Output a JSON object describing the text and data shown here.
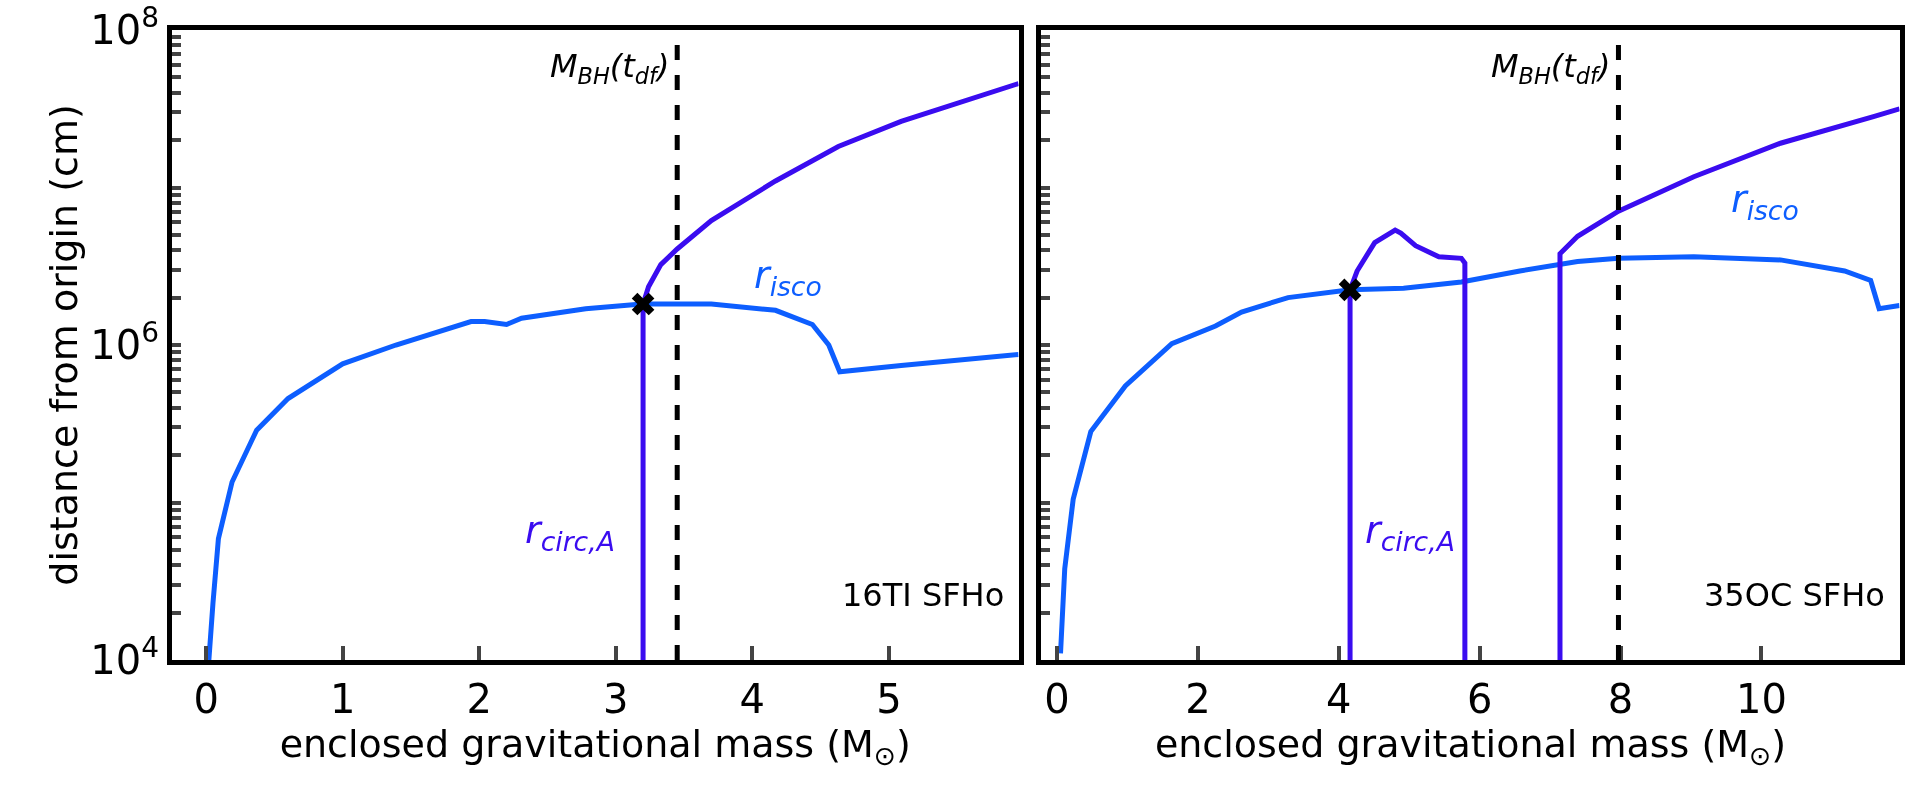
{
  "chart_data": [
    {
      "type": "line",
      "xlabel": "enclosed gravitational mass (M$_{⊙}$)",
      "ylabel": "distance from origin (cm)",
      "log": "y",
      "legend": false,
      "line_style": "solid",
      "xlim": [
        -0.25,
        5.95
      ],
      "xticks": [
        0,
        1,
        2,
        3,
        4,
        5
      ],
      "ylim": [
        10000,
        100000000
      ],
      "yticks": [
        {
          "value": 10000,
          "label": "10$^{4}$"
        },
        {
          "value": 20000,
          "label": null
        },
        {
          "value": 30000,
          "label": null
        },
        {
          "value": 40000,
          "label": null
        },
        {
          "value": 50000,
          "label": null
        },
        {
          "value": 60000,
          "label": null
        },
        {
          "value": 70000,
          "label": null
        },
        {
          "value": 80000,
          "label": null
        },
        {
          "value": 90000,
          "label": null
        },
        {
          "value": 100000,
          "label": null
        },
        {
          "value": 200000,
          "label": null
        },
        {
          "value": 300000,
          "label": null
        },
        {
          "value": 400000,
          "label": null
        },
        {
          "value": 500000,
          "label": null
        },
        {
          "value": 600000,
          "label": null
        },
        {
          "value": 700000,
          "label": null
        },
        {
          "value": 800000,
          "label": null
        },
        {
          "value": 900000,
          "label": null
        },
        {
          "value": 1000000,
          "label": "10$^{6}$"
        },
        {
          "value": 2000000,
          "label": null
        },
        {
          "value": 3000000,
          "label": null
        },
        {
          "value": 4000000,
          "label": null
        },
        {
          "value": 5000000,
          "label": null
        },
        {
          "value": 6000000,
          "label": null
        },
        {
          "value": 7000000,
          "label": null
        },
        {
          "value": 8000000,
          "label": null
        },
        {
          "value": 9000000,
          "label": null
        },
        {
          "value": 10000000,
          "label": null
        },
        {
          "value": 20000000,
          "label": null
        },
        {
          "value": 30000000,
          "label": null
        },
        {
          "value": 40000000,
          "label": null
        },
        {
          "value": 50000000,
          "label": null
        },
        {
          "value": 60000000,
          "label": null
        },
        {
          "value": 70000000,
          "label": null
        },
        {
          "value": 80000000,
          "label": null
        },
        {
          "value": 90000000,
          "label": null
        },
        {
          "value": 100000000,
          "label": "10$^{8}$"
        }
      ],
      "series": [
        {
          "name": "r$_{isco}$",
          "color": "#0d5eff",
          "x": [
            0.02,
            0.05,
            0.09,
            0.19,
            0.37,
            0.6,
            1.0,
            1.39,
            1.94,
            2.04,
            2.2,
            2.31,
            2.78,
            3.19,
            3.7,
            4.17,
            4.44,
            4.56,
            4.64,
            5.09,
            5.95
          ],
          "values": [
            10000,
            22900,
            58900,
            135000,
            288000,
            457000,
            759000,
            1000000,
            1410000,
            1410000,
            1350000,
            1480000,
            1700000,
            1820000,
            1820000,
            1660000,
            1350000,
            1000000,
            676000,
            741000,
            871000
          ]
        },
        {
          "name": "r$_{circ,A}$",
          "color": "#3a0cf0",
          "x": [
            3.2,
            3.2,
            3.24,
            3.33,
            3.45,
            3.7,
            4.17,
            4.63,
            5.09,
            5.95
          ],
          "values": [
            10000,
            1820000,
            2340000,
            3240000,
            4070000,
            6170000,
            11000000,
            18200000,
            26300000,
            45700000
          ]
        },
        {
          "type": "scatter",
          "marker": "cross",
          "color": "#000000",
          "x": [
            3.2
          ],
          "values": [
            1820000
          ]
        }
      ],
      "ref_lines": [
        {
          "axis": "x",
          "value": 3.45,
          "label": "M$_{BH}$(t$_{df}$)",
          "color": "#000000",
          "line_style": "dashed"
        }
      ],
      "annotations": [
        "16TI SFHo"
      ]
    },
    {
      "type": "line",
      "xlabel": "enclosed gravitational mass (M$_{⊙}$)",
      "log": "y",
      "legend": false,
      "line_style": "solid",
      "tick_labels": "x",
      "xlim": [
        -0.22,
        11.96
      ],
      "xticks": [
        0,
        2,
        4,
        6,
        8,
        10
      ],
      "ylim": [
        10000,
        100000000
      ],
      "yticks": [
        {
          "value": 10000,
          "label": null
        },
        {
          "value": 20000,
          "label": null
        },
        {
          "value": 30000,
          "label": null
        },
        {
          "value": 40000,
          "label": null
        },
        {
          "value": 50000,
          "label": null
        },
        {
          "value": 60000,
          "label": null
        },
        {
          "value": 70000,
          "label": null
        },
        {
          "value": 80000,
          "label": null
        },
        {
          "value": 90000,
          "label": null
        },
        {
          "value": 100000,
          "label": null
        },
        {
          "value": 200000,
          "label": null
        },
        {
          "value": 300000,
          "label": null
        },
        {
          "value": 400000,
          "label": null
        },
        {
          "value": 500000,
          "label": null
        },
        {
          "value": 600000,
          "label": null
        },
        {
          "value": 700000,
          "label": null
        },
        {
          "value": 800000,
          "label": null
        },
        {
          "value": 900000,
          "label": null
        },
        {
          "value": 1000000,
          "label": null
        },
        {
          "value": 2000000,
          "label": null
        },
        {
          "value": 3000000,
          "label": null
        },
        {
          "value": 4000000,
          "label": null
        },
        {
          "value": 5000000,
          "label": null
        },
        {
          "value": 6000000,
          "label": null
        },
        {
          "value": 7000000,
          "label": null
        },
        {
          "value": 8000000,
          "label": null
        },
        {
          "value": 9000000,
          "label": null
        },
        {
          "value": 10000000,
          "label": null
        },
        {
          "value": 20000000,
          "label": null
        },
        {
          "value": 30000000,
          "label": null
        },
        {
          "value": 40000000,
          "label": null
        },
        {
          "value": 50000000,
          "label": null
        },
        {
          "value": 60000000,
          "label": null
        },
        {
          "value": 70000000,
          "label": null
        },
        {
          "value": 80000000,
          "label": null
        },
        {
          "value": 90000000,
          "label": null
        },
        {
          "value": 100000000,
          "label": null
        }
      ],
      "series": [
        {
          "name": "r$_{isco}$",
          "color": "#0d5eff",
          "x": [
            0.05,
            0.11,
            0.23,
            0.48,
            0.97,
            1.63,
            2.25,
            2.62,
            3.28,
            4.16,
            4.92,
            5.74,
            6.57,
            7.39,
            7.97,
            9.04,
            10.27,
            11.18,
            11.55,
            11.67,
            11.96
          ],
          "values": [
            11000,
            38000,
            105000,
            282000,
            550000,
            1020000,
            1320000,
            1620000,
            2000000,
            2240000,
            2290000,
            2510000,
            2950000,
            3390000,
            3550000,
            3630000,
            3470000,
            2950000,
            2570000,
            1700000,
            1780000
          ]
        },
        {
          "name": "r$_{circ,A}$",
          "color": "#3a0cf0",
          "x": [
            4.16,
            4.16,
            4.26,
            4.51,
            4.8,
            4.88,
            5.09,
            5.42,
            5.74,
            5.79,
            5.79,
            6.5,
            7.14,
            7.14,
            7.39,
            7.97,
            9.04,
            10.27,
            11.59,
            11.96
          ],
          "values": [
            10000,
            2240000,
            2950000,
            4470000,
            5370000,
            5130000,
            4270000,
            3630000,
            3550000,
            3310000,
            10000,
            null,
            10000,
            3800000,
            4900000,
            7080000,
            11700000,
            19100000,
            28200000,
            31600000
          ]
        },
        {
          "type": "scatter",
          "marker": "cross",
          "color": "#000000",
          "x": [
            4.16
          ],
          "values": [
            2240000
          ]
        }
      ],
      "ref_lines": [
        {
          "axis": "x",
          "value": 7.97,
          "label": "M$_{BH}$(t$_{df}$)",
          "color": "#000000",
          "line_style": "dashed"
        }
      ],
      "annotations": [
        "35OC SFHo"
      ]
    }
  ]
}
